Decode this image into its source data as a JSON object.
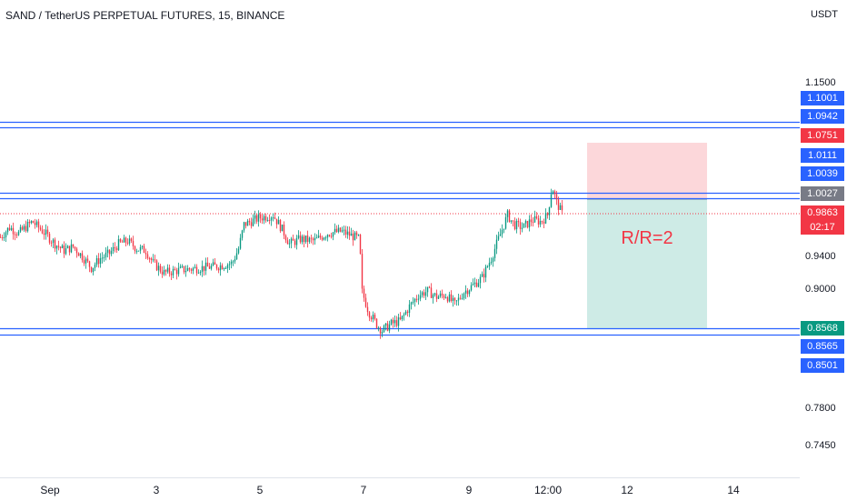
{
  "header": {
    "title": "SAND / TetherUS PERPETUAL FUTURES, 15, BINANCE"
  },
  "axis": {
    "unit": "USDT",
    "price_ticks": [
      "1.1500",
      "0.9400",
      "0.9000",
      "0.7800",
      "0.7450"
    ],
    "time_ticks": [
      "Sep",
      "3",
      "5",
      "7",
      "9",
      "12:00",
      "12",
      "14"
    ]
  },
  "badges": [
    {
      "label": "1.1001",
      "value": 1.1001,
      "color": "#2962ff"
    },
    {
      "label": "1.0942",
      "value": 1.0942,
      "color": "#2962ff"
    },
    {
      "label": "1.0751",
      "value": 1.0751,
      "color": "#f23645"
    },
    {
      "label": "1.0111",
      "value": 1.0111,
      "color": "#2962ff"
    },
    {
      "label": "1.0039",
      "value": 1.0039,
      "color": "#2962ff"
    },
    {
      "label": "1.0027",
      "value": 1.0027,
      "color": "#787b86"
    },
    {
      "label": "0.9863",
      "value": 0.9863,
      "color": "#f23645"
    },
    {
      "label": "02:17",
      "value": null,
      "color": "#f23645"
    },
    {
      "label": "0.8568",
      "value": 0.8568,
      "color": "#089981"
    },
    {
      "label": "0.8565",
      "value": 0.8565,
      "color": "#2962ff"
    },
    {
      "label": "0.8501",
      "value": 0.8501,
      "color": "#2962ff"
    }
  ],
  "position": {
    "label": "R/R=2",
    "entry": 1.0027,
    "stop": 1.0751,
    "target": 0.8568
  },
  "colors": {
    "up": "#089981",
    "down": "#f23645",
    "line": "#2962ff",
    "last": "#f23645"
  },
  "chart_data": {
    "type": "candlestick",
    "title": "SAND / TetherUS PERPETUAL FUTURES, 15, BINANCE",
    "y_unit": "USDT",
    "horizontal_levels": [
      1.1001,
      1.0942,
      1.0111,
      1.0039,
      0.8565,
      0.8501
    ],
    "last_price": 0.9863,
    "close_path": [
      [
        0,
        0.962
      ],
      [
        10,
        0.972
      ],
      [
        20,
        0.966
      ],
      [
        35,
        0.978
      ],
      [
        50,
        0.965
      ],
      [
        60,
        0.955
      ],
      [
        70,
        0.948
      ],
      [
        80,
        0.952
      ],
      [
        90,
        0.942
      ],
      [
        100,
        0.93
      ],
      [
        110,
        0.94
      ],
      [
        120,
        0.945
      ],
      [
        130,
        0.955
      ],
      [
        140,
        0.958
      ],
      [
        150,
        0.95
      ],
      [
        160,
        0.948
      ],
      [
        168,
        0.935
      ],
      [
        180,
        0.925
      ],
      [
        200,
        0.928
      ],
      [
        220,
        0.93
      ],
      [
        240,
        0.932
      ],
      [
        255,
        0.935
      ],
      [
        262,
        0.95
      ],
      [
        268,
        0.975
      ],
      [
        285,
        0.982
      ],
      [
        300,
        0.985
      ],
      [
        310,
        0.97
      ],
      [
        318,
        0.955
      ],
      [
        330,
        0.96
      ],
      [
        345,
        0.958
      ],
      [
        360,
        0.966
      ],
      [
        375,
        0.968
      ],
      [
        390,
        0.962
      ],
      [
        395,
        0.96
      ],
      [
        398,
        0.905
      ],
      [
        405,
        0.885
      ],
      [
        415,
        0.87
      ],
      [
        420,
        0.865
      ],
      [
        430,
        0.872
      ],
      [
        440,
        0.875
      ],
      [
        450,
        0.89
      ],
      [
        460,
        0.902
      ],
      [
        470,
        0.906
      ],
      [
        480,
        0.9
      ],
      [
        490,
        0.902
      ],
      [
        500,
        0.892
      ],
      [
        510,
        0.905
      ],
      [
        520,
        0.912
      ],
      [
        530,
        0.92
      ],
      [
        540,
        0.94
      ],
      [
        550,
        0.965
      ],
      [
        558,
        0.985
      ],
      [
        565,
        0.975
      ],
      [
        575,
        0.972
      ],
      [
        585,
        0.98
      ],
      [
        595,
        0.978
      ],
      [
        602,
        0.985
      ],
      [
        607,
        1.015
      ],
      [
        612,
        0.998
      ],
      [
        618,
        0.9863
      ]
    ]
  }
}
